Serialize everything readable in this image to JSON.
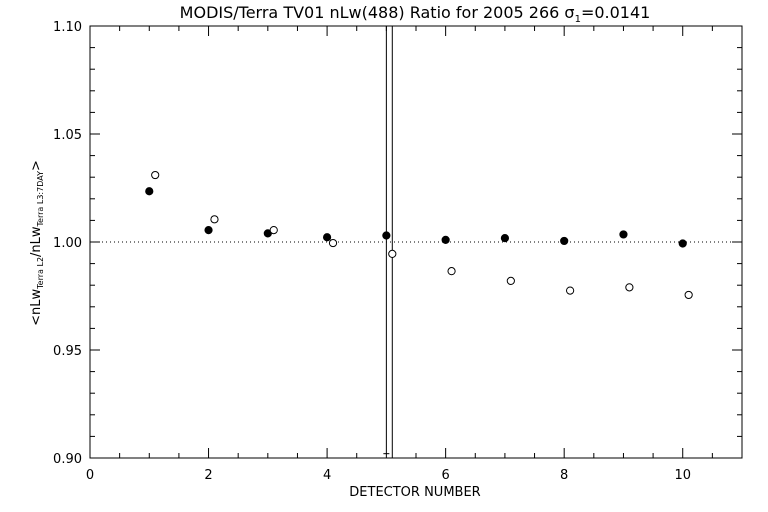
{
  "chart_data": {
    "type": "scatter",
    "title_main": "MODIS/Terra TV01 nLw(488) Ratio for 2005 266 ",
    "title_sigma": "σ",
    "title_sigma_sub": "1",
    "title_value": "=0.0141",
    "xlabel": "DETECTOR NUMBER",
    "ylabel": {
      "prefix": "<nLw",
      "sub1": "Terra L2",
      "mid": "/nLw",
      "sub2": "Terra L3:7DAY",
      "suffix": ">"
    },
    "xlim": [
      0,
      11
    ],
    "ylim": [
      0.9,
      1.1
    ],
    "x_ticks": [
      0,
      2,
      4,
      6,
      8,
      10
    ],
    "x_tick_labels": [
      "0",
      "2",
      "4",
      "6",
      "8",
      "10"
    ],
    "y_ticks": [
      0.9,
      0.95,
      1.0,
      1.05,
      1.1
    ],
    "y_tick_labels": [
      "0.90",
      "0.95",
      "1.00",
      "1.05",
      "1.10"
    ],
    "reference_line_y": 1.0,
    "series": [
      {
        "marker": "filled-circle",
        "x": [
          1,
          2,
          3,
          4,
          5,
          6,
          7,
          8,
          9,
          10
        ],
        "y": [
          1.0235,
          1.0055,
          1.004,
          1.0022,
          1.003,
          1.001,
          1.0018,
          1.0005,
          1.0035,
          0.9993
        ]
      },
      {
        "marker": "open-circle",
        "x": [
          1.1,
          2.1,
          3.1,
          4.1,
          5.1,
          6.1,
          7.1,
          8.1,
          9.1,
          10.1
        ],
        "y": [
          1.031,
          1.0105,
          1.0055,
          0.9995,
          0.9945,
          0.9865,
          0.982,
          0.9775,
          0.979,
          0.9755
        ]
      }
    ],
    "error_bars": [
      {
        "x": 5.0,
        "low": 0.902,
        "high": 1.1
      },
      {
        "x": 5.1,
        "low": 0.9,
        "high": 1.1
      }
    ],
    "colors": {
      "marks": "#000000",
      "background": "#ffffff"
    }
  }
}
